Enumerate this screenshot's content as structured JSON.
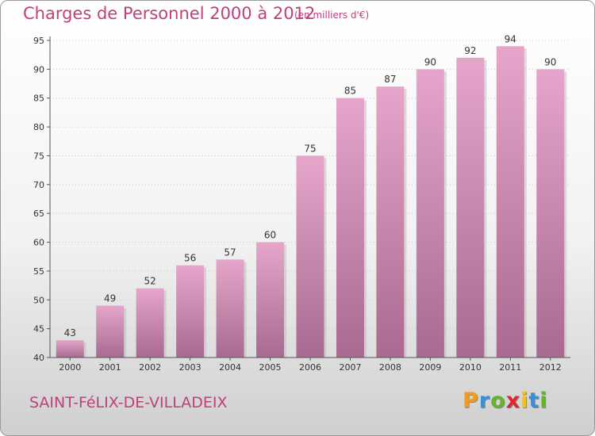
{
  "header": {
    "title": "Charges de Personnel 2000 à 2012",
    "unit": "(en milliers d'€)"
  },
  "footer": {
    "commune": "SAINT-FéLIX-DE-VILLADEIX",
    "logo_letters": [
      "P",
      "r",
      "o",
      "x",
      "i",
      "t",
      "i"
    ]
  },
  "colors": {
    "title": "#c0407a",
    "bar_top": "#e6a6cb",
    "bar_bottom": "#a86a90",
    "logo": [
      "#f29b1d",
      "#3b8ed8",
      "#66b32e",
      "#e2262b",
      "#f2c21d",
      "#3b8ed8",
      "#66b32e"
    ]
  },
  "chart_data": {
    "type": "bar",
    "title": "Charges de Personnel 2000 à 2012",
    "subtitle": "(en milliers d'€)",
    "categories": [
      "2000",
      "2001",
      "2002",
      "2003",
      "2004",
      "2005",
      "2006",
      "2007",
      "2008",
      "2009",
      "2010",
      "2011",
      "2012"
    ],
    "values": [
      43,
      49,
      52,
      56,
      57,
      60,
      75,
      85,
      87,
      90,
      92,
      94,
      90
    ],
    "ylim": [
      40,
      95
    ],
    "yticks": [
      40,
      45,
      50,
      55,
      60,
      65,
      70,
      75,
      80,
      85,
      90,
      95
    ],
    "grid": true,
    "legend": "none"
  }
}
